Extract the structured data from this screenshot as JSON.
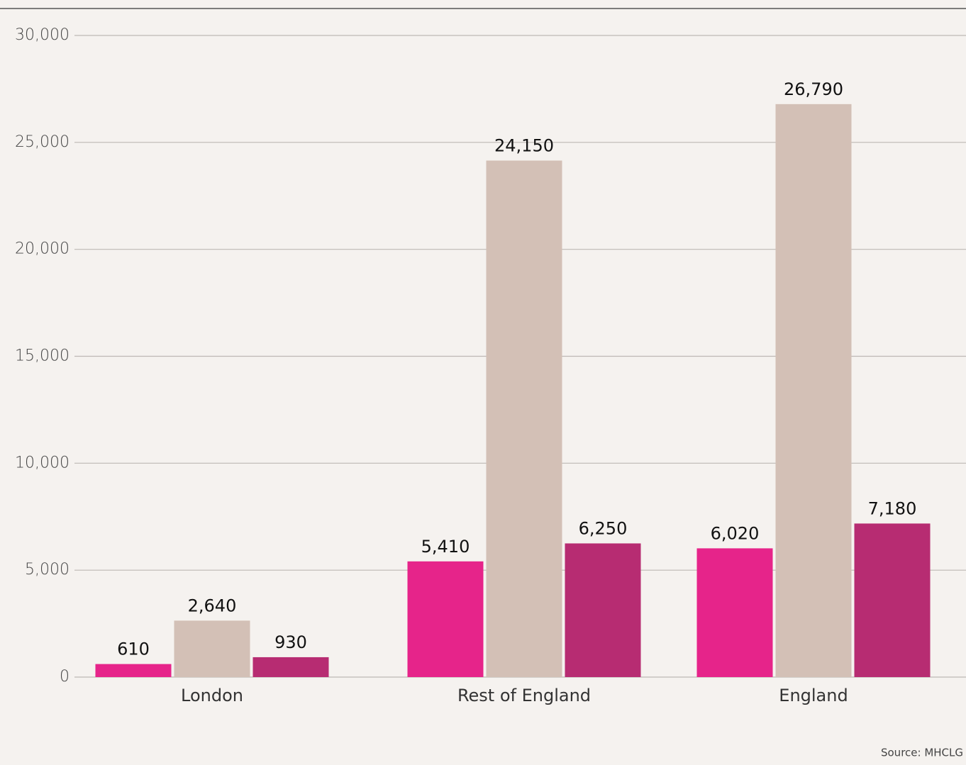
{
  "chart_data": {
    "type": "bar",
    "categories": [
      "London",
      "Rest of England",
      "England"
    ],
    "series": [
      {
        "color": "#e6248a",
        "values": [
          610,
          5410,
          6020
        ],
        "value_labels": [
          "610",
          "5,410",
          "6,020"
        ]
      },
      {
        "color": "#d3c0b6",
        "values": [
          2640,
          24150,
          26790
        ],
        "value_labels": [
          "2,640",
          "24,150",
          "26,790"
        ]
      },
      {
        "color": "#b72c72",
        "values": [
          930,
          6250,
          7180
        ],
        "value_labels": [
          "930",
          "6,250",
          "7,180"
        ]
      }
    ],
    "ylim": [
      0,
      30000
    ],
    "yticks": [
      0,
      {
        "value": 5000,
        "label": "5,000"
      },
      {
        "value": 10000,
        "label": "10,000"
      },
      {
        "value": 15000,
        "label": "15,000"
      },
      {
        "value": 20000,
        "label": "20,000"
      },
      {
        "value": 25000,
        "label": "25,000"
      },
      {
        "value": 30000,
        "label": "30,000"
      }
    ],
    "grid": true,
    "source": "Source: MHCLG"
  }
}
